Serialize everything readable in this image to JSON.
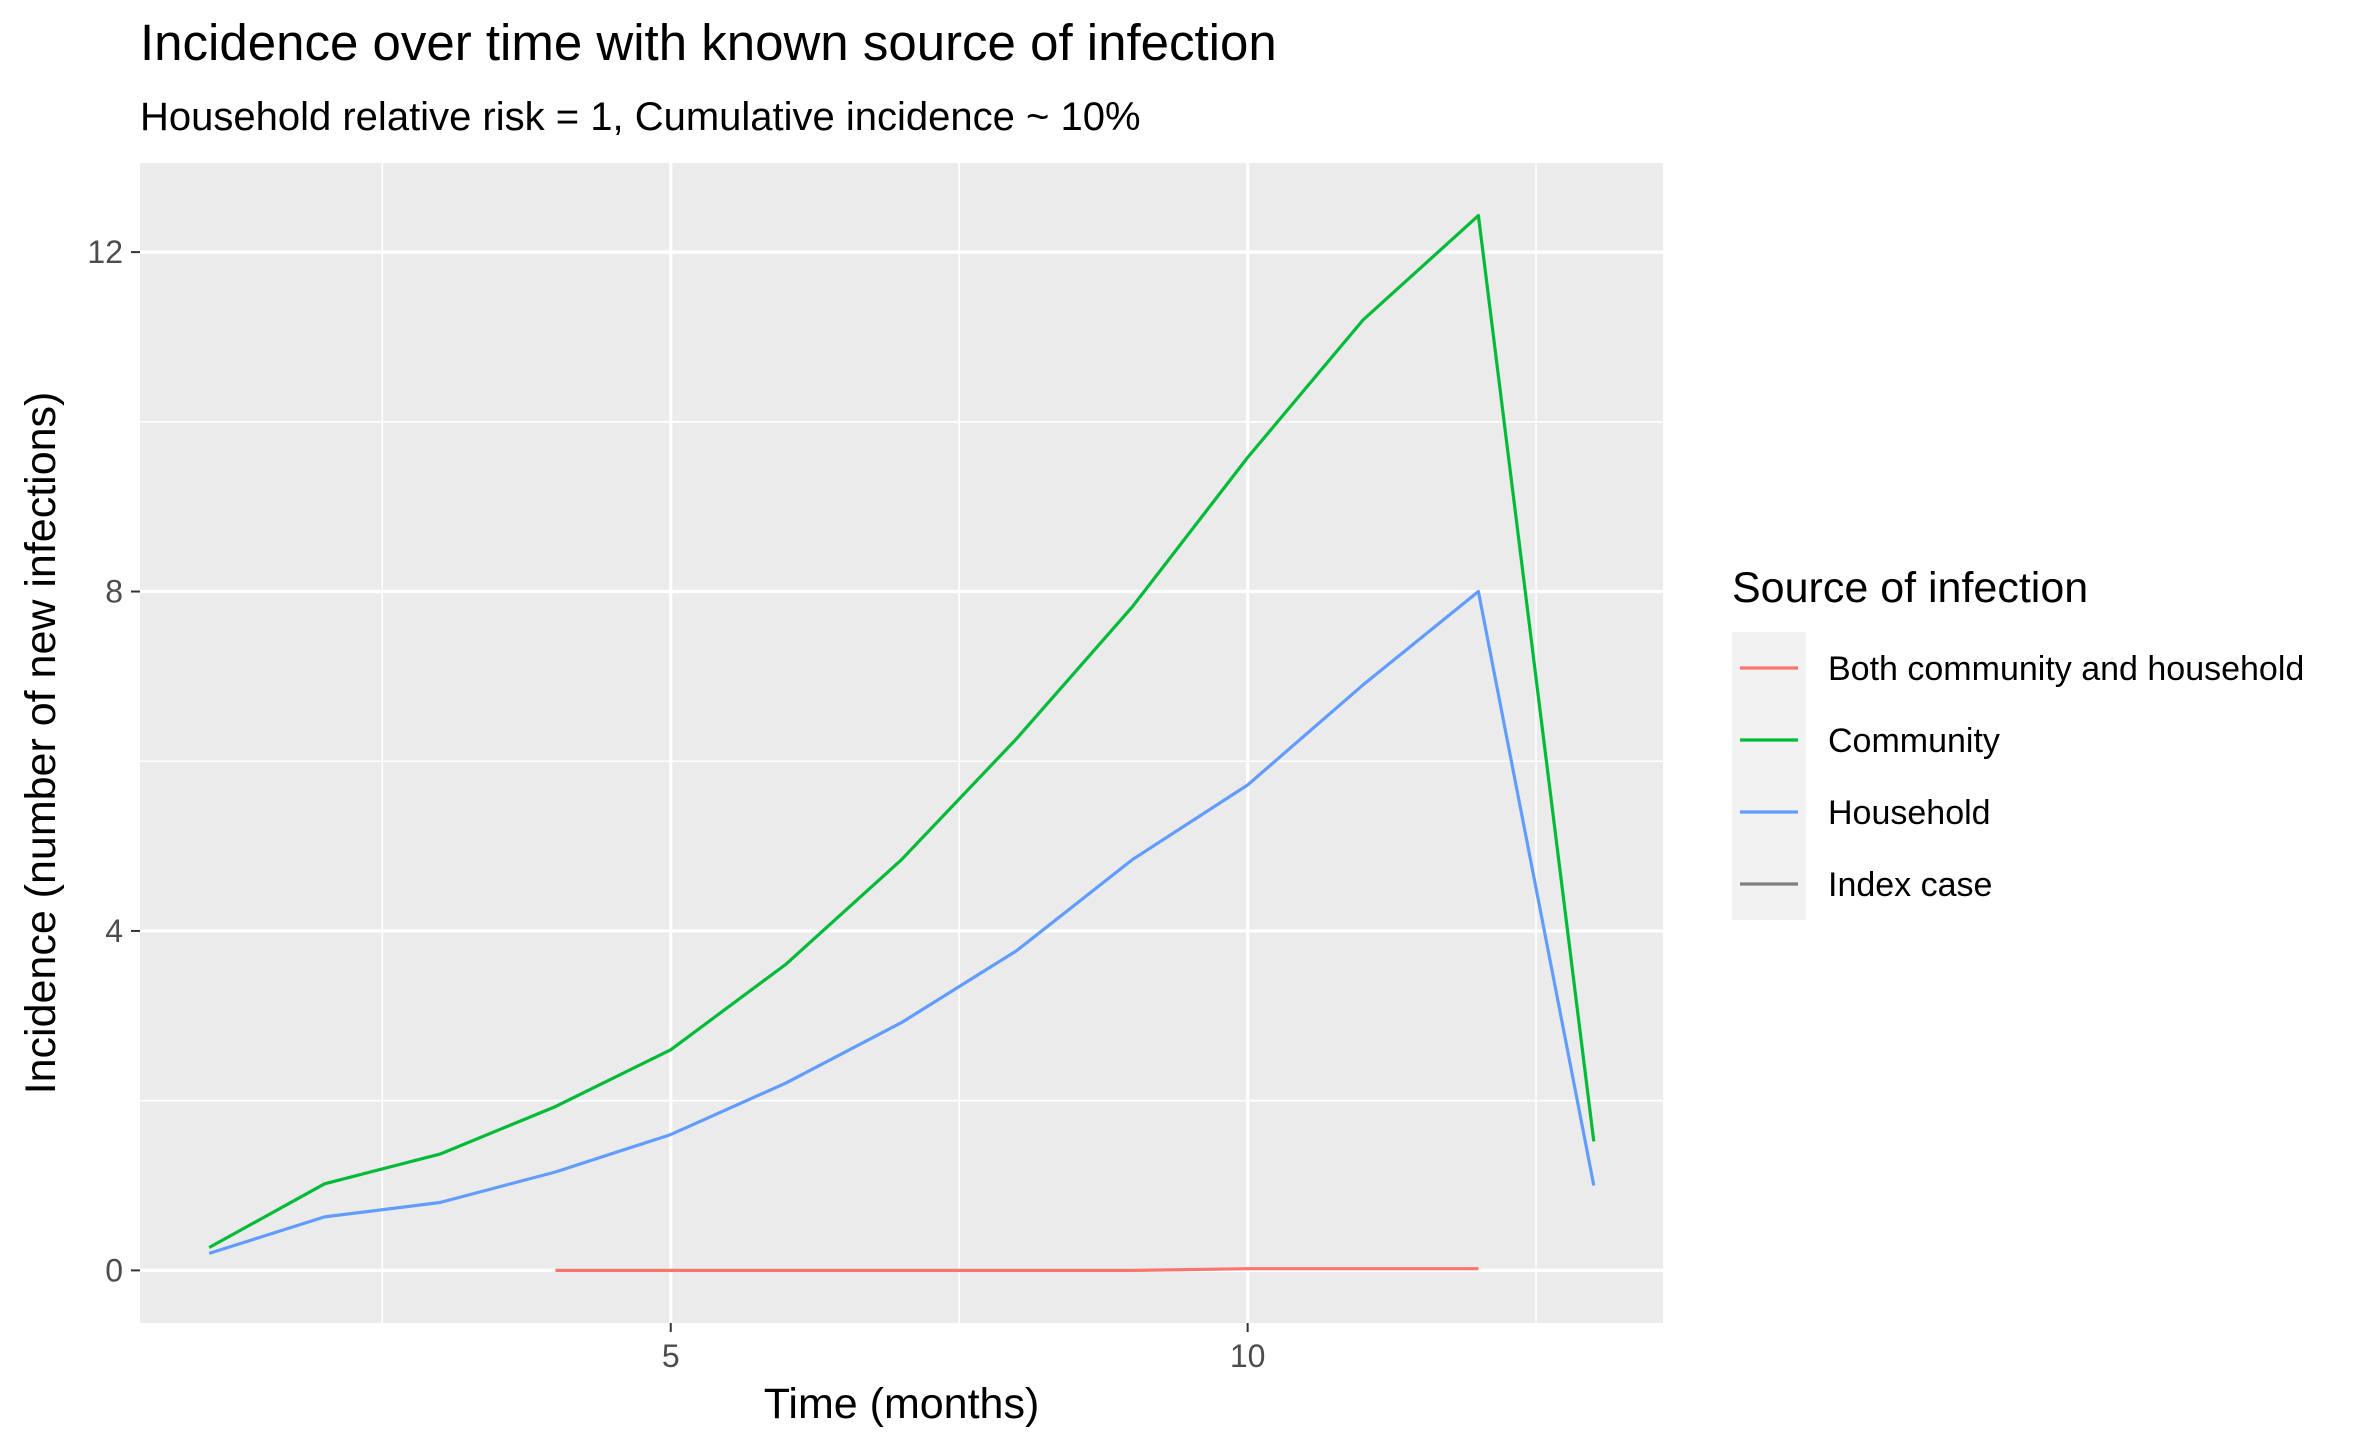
{
  "chart_data": {
    "type": "line",
    "title": "Incidence over time with known source of infection",
    "subtitle": "Household relative risk = 1, Cumulative incidence ~ 10%",
    "xlabel": "Time (months)",
    "ylabel": "Incidence (number of new infections)",
    "xlim": [
      0.4,
      13.6
    ],
    "ylim": [
      -0.62,
      13.05
    ],
    "x_ticks": [
      5,
      10
    ],
    "x_tick_labels": [
      "5",
      "10"
    ],
    "x_minor_ticks": [
      2.5,
      7.5,
      12.5
    ],
    "y_ticks": [
      0,
      4,
      8,
      12
    ],
    "y_tick_labels": [
      "0",
      "4",
      "8",
      "12"
    ],
    "y_minor_ticks": [
      2,
      6,
      10
    ],
    "grid": true,
    "panel_background": "#ebebeb",
    "grid_color": "#ffffff",
    "legend": {
      "title": "Source of infection",
      "placement": "right",
      "entries": [
        "Both community and household",
        "Community",
        "Household",
        "Index case"
      ]
    },
    "series": [
      {
        "name": "Both community and household",
        "color": "#f8766d",
        "x": [
          4,
          5,
          6,
          7,
          8,
          9,
          10,
          11,
          12
        ],
        "y": [
          0.0,
          0.0,
          0.0,
          0.0,
          0.0,
          0.0,
          0.02,
          0.02,
          0.02
        ]
      },
      {
        "name": "Community",
        "color": "#00ba38",
        "x": [
          1,
          2,
          3,
          4,
          5,
          6,
          7,
          8,
          9,
          10,
          11,
          12,
          13
        ],
        "y": [
          0.27,
          1.02,
          1.37,
          1.93,
          2.6,
          3.61,
          4.84,
          6.27,
          7.82,
          9.58,
          11.2,
          12.43,
          1.52
        ]
      },
      {
        "name": "Household",
        "color": "#619cff",
        "x": [
          1,
          2,
          3,
          4,
          5,
          6,
          7,
          8,
          9,
          10,
          11,
          12,
          13
        ],
        "y": [
          0.2,
          0.63,
          0.8,
          1.16,
          1.6,
          2.21,
          2.92,
          3.77,
          4.84,
          5.72,
          6.9,
          8.0,
          1.0
        ]
      },
      {
        "name": "Index case",
        "color": "#7f7f7f",
        "x": [],
        "y": []
      }
    ]
  }
}
